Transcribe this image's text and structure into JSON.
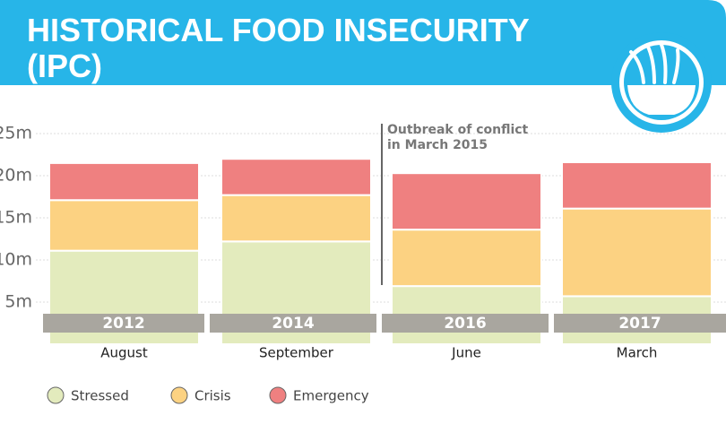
{
  "chart_data": {
    "type": "stacked-bar",
    "title": [
      "HISTORICAL FOOD INSECURITY",
      "(IPC)"
    ],
    "annotation": [
      "Outbreak of conflict",
      "in March 2015"
    ],
    "categories": [
      "2012",
      "2014",
      "2016",
      "2017"
    ],
    "months": [
      "August",
      "September",
      "June",
      "March"
    ],
    "series": [
      {
        "name": "Stressed",
        "color": "#e3ebbd",
        "values": [
          11.1,
          12.2,
          6.9,
          5.7
        ]
      },
      {
        "name": "Crisis",
        "color": "#fcd282",
        "values": [
          6.0,
          5.5,
          6.7,
          10.4
        ]
      },
      {
        "name": "Emergency",
        "color": "#ef8080",
        "values": [
          4.4,
          4.3,
          6.7,
          5.5
        ]
      }
    ],
    "ylim": [
      0,
      25
    ],
    "yticks": [
      {
        "value": 5,
        "label": "5m"
      },
      {
        "value": 10,
        "label": "10m"
      },
      {
        "value": 15,
        "label": "15m"
      },
      {
        "value": 20,
        "label": "20m"
      },
      {
        "value": 25,
        "label": "25m"
      }
    ],
    "grid": true
  }
}
